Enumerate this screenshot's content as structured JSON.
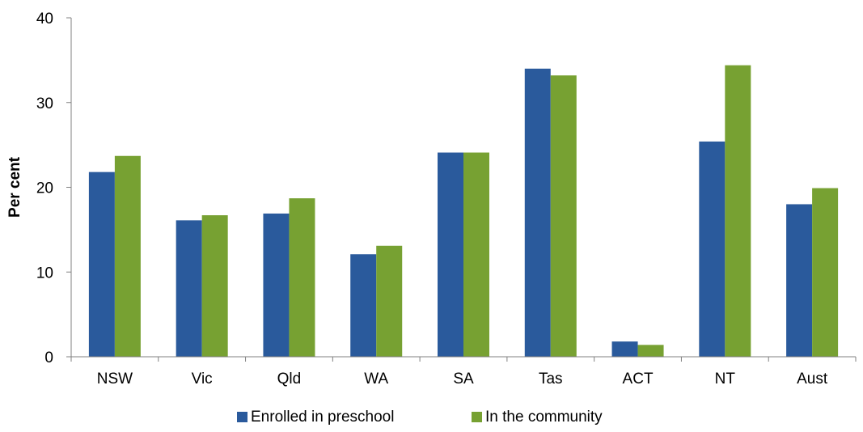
{
  "chart_data": {
    "type": "bar",
    "title": "",
    "xlabel": "",
    "ylabel": "Per cent",
    "ylim": [
      0,
      40
    ],
    "yticks": [
      0,
      10,
      20,
      30,
      40
    ],
    "categories": [
      "NSW",
      "Vic",
      "Qld",
      "WA",
      "SA",
      "Tas",
      "ACT",
      "NT",
      "Aust"
    ],
    "series": [
      {
        "name": "Enrolled in preschool",
        "color": "#2a5a9c",
        "values": [
          21.8,
          16.1,
          16.9,
          12.1,
          24.1,
          34.0,
          1.8,
          25.4,
          18.0
        ]
      },
      {
        "name": "In the community",
        "color": "#77a132",
        "values": [
          23.7,
          16.7,
          18.7,
          13.1,
          24.1,
          33.2,
          1.4,
          34.4,
          19.9
        ]
      }
    ],
    "grid": false,
    "legend_position": "bottom"
  }
}
